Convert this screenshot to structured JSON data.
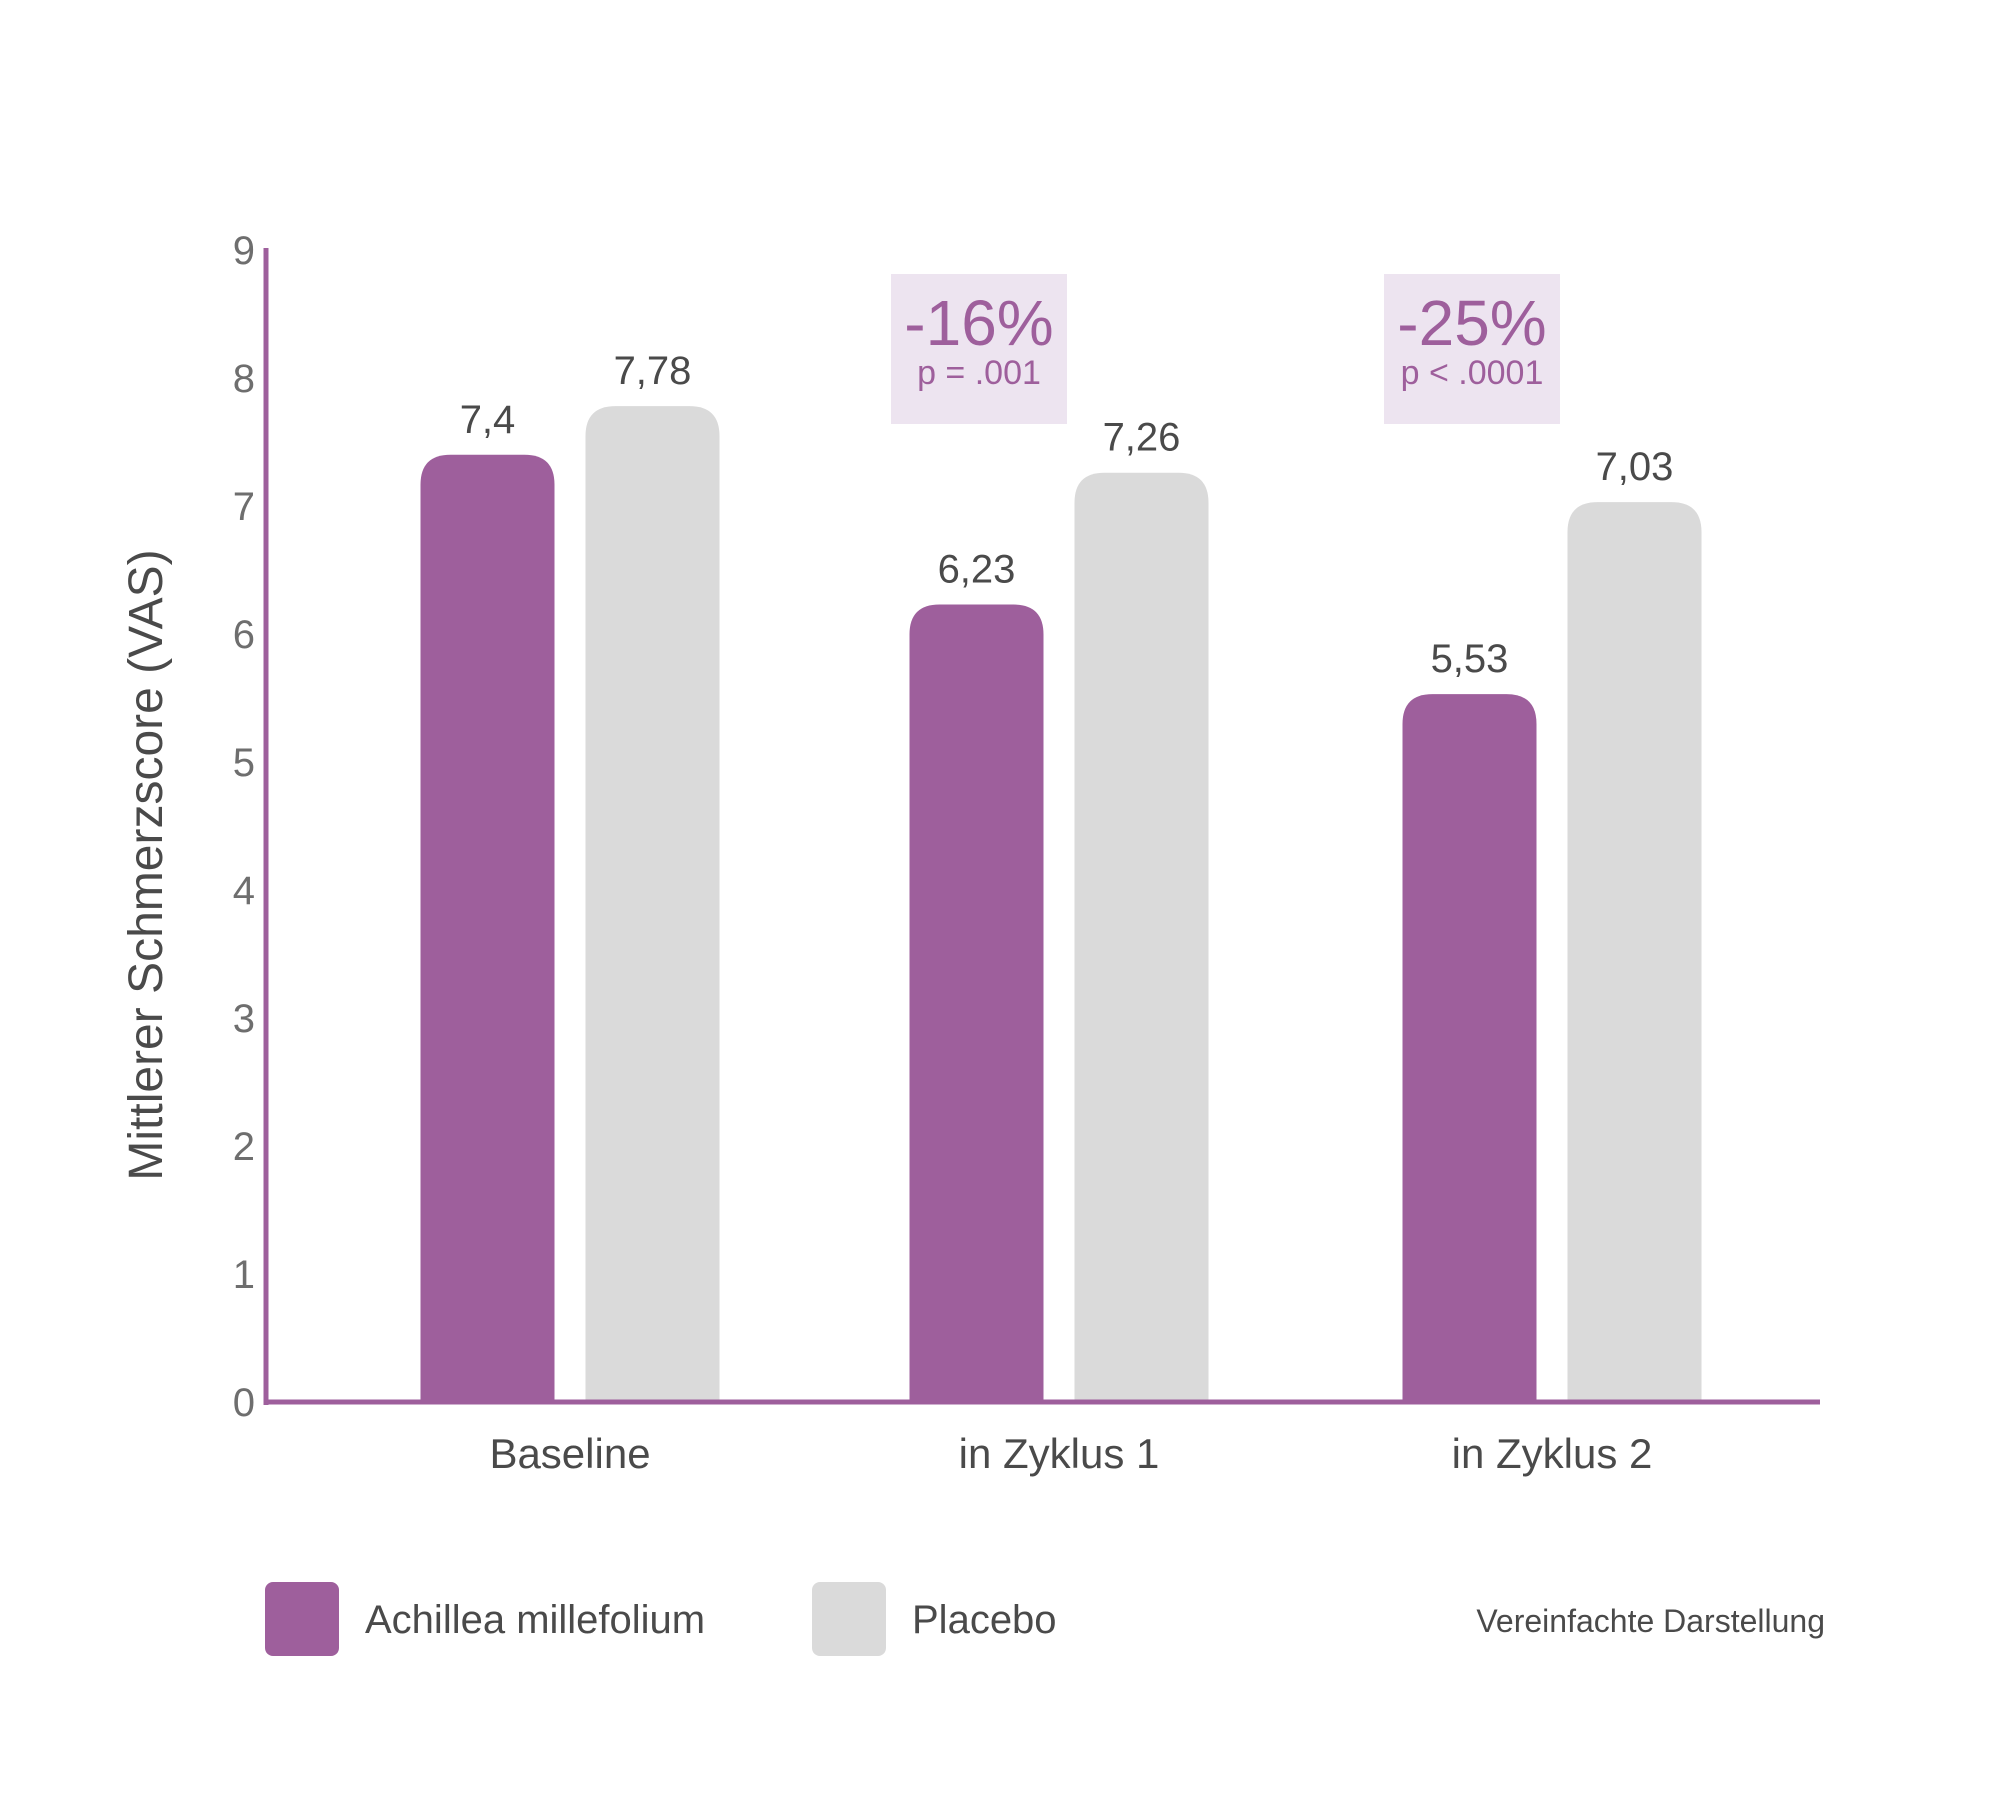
{
  "chart_data": {
    "type": "bar",
    "title": "",
    "xlabel": "",
    "ylabel": "Mittlerer Schmerzscore (VAS)",
    "ylim": [
      0,
      9
    ],
    "yticks": [
      "0",
      "1",
      "2",
      "3",
      "4",
      "5",
      "6",
      "7",
      "8",
      "9"
    ],
    "grid": false,
    "categories": [
      "Baseline",
      "in Zyklus 1",
      "in Zyklus 2"
    ],
    "series": [
      {
        "name": "Achillea millefolium",
        "color": "#9e5f9c",
        "values": [
          7.4,
          6.23,
          5.53
        ],
        "labels": [
          "7,4",
          "6,23",
          "5,53"
        ]
      },
      {
        "name": "Placebo",
        "color": "#dadada",
        "values": [
          7.78,
          7.26,
          7.03
        ],
        "labels": [
          "7,78",
          "7,26",
          "7,03"
        ]
      }
    ],
    "annotations": [
      {
        "category": "in Zyklus 1",
        "main": "-16%",
        "sub": "p = .001"
      },
      {
        "category": "in Zyklus 2",
        "main": "-25%",
        "sub": "p < .0001"
      }
    ],
    "legend_placement": "bottom-left",
    "note": "Vereinfachte Darstellung",
    "colors": {
      "axis": "#9e5f9c",
      "annotation_text": "#9e5f9c",
      "annotation_bg": "#ede4f0",
      "text": "#4a4a4a",
      "tick_text": "#6e6e6e"
    }
  }
}
